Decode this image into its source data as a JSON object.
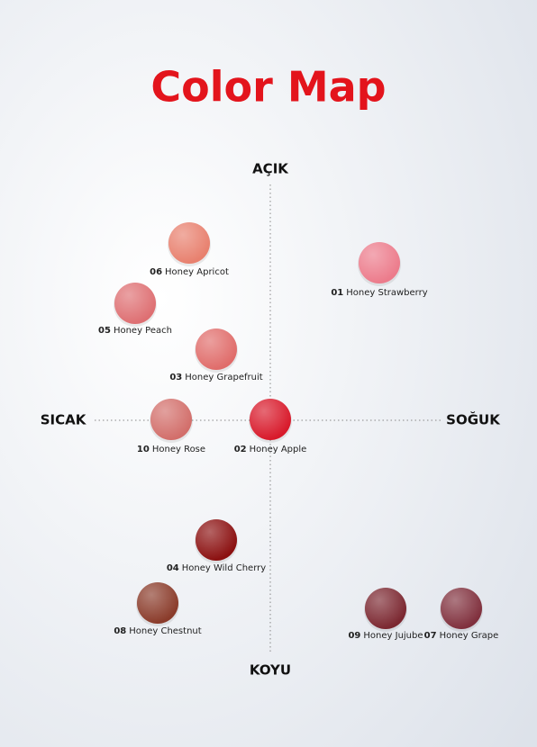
{
  "title": "Color Map",
  "axes": {
    "top": "AÇIK",
    "bottom": "KOYU",
    "left": "SICAK",
    "right": "SOĞUK"
  },
  "shades": [
    {
      "number": "06",
      "name": "Honey Apricot",
      "color": "#e8806e"
    },
    {
      "number": "01",
      "name": "Honey Strawberry",
      "color": "#ec7b8b"
    },
    {
      "number": "05",
      "name": "Honey Peach",
      "color": "#de6f72"
    },
    {
      "number": "03",
      "name": "Honey Grapefruit",
      "color": "#e06c6a"
    },
    {
      "number": "10",
      "name": "Honey Rose",
      "color": "#d26e6a"
    },
    {
      "number": "02",
      "name": "Honey Apple",
      "color": "#d8192a"
    },
    {
      "number": "04",
      "name": "Honey Wild Cherry",
      "color": "#8b1010"
    },
    {
      "number": "08",
      "name": "Honey Chestnut",
      "color": "#8a3b2a"
    },
    {
      "number": "09",
      "name": "Honey Jujube",
      "color": "#7b2730"
    },
    {
      "number": "07",
      "name": "Honey Grape",
      "color": "#80303d"
    }
  ]
}
